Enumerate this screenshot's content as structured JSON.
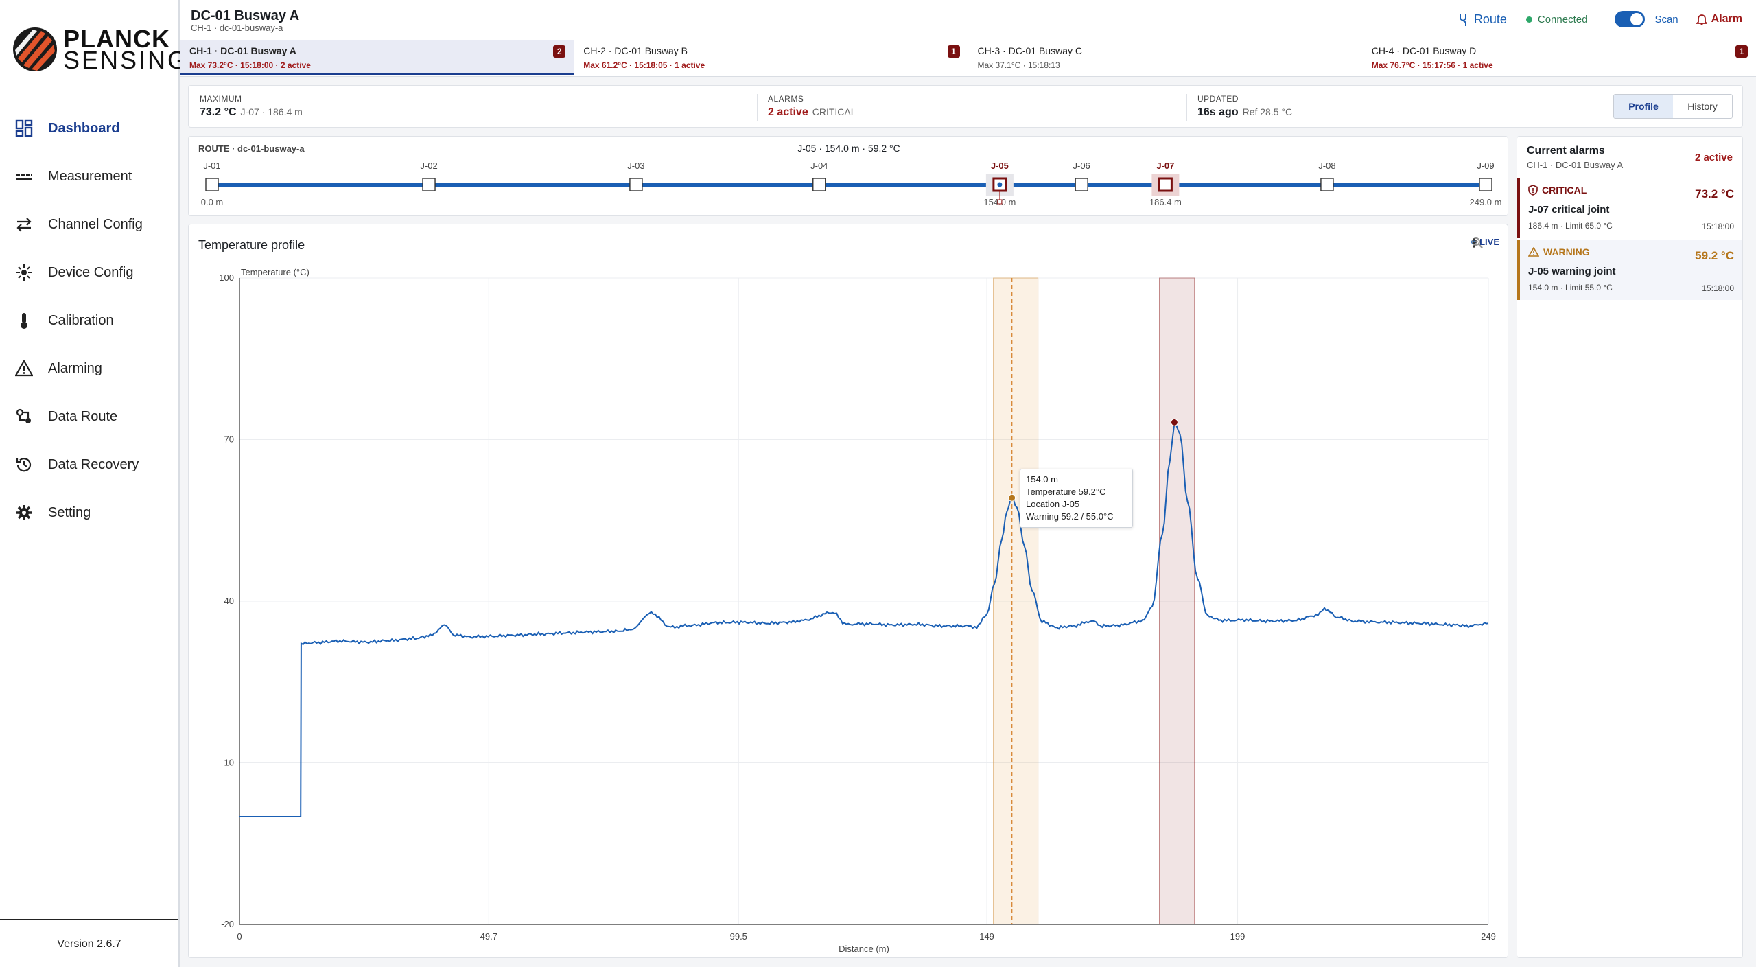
{
  "brand": {
    "line1": "PLANCK",
    "line2": "SENSING"
  },
  "nav": {
    "items": [
      {
        "label": "Dashboard",
        "icon": "dashboard-icon",
        "active": true
      },
      {
        "label": "Measurement",
        "icon": "measurement-icon"
      },
      {
        "label": "Channel Config",
        "icon": "channel-config-icon"
      },
      {
        "label": "Device Config",
        "icon": "device-config-icon"
      },
      {
        "label": "Calibration",
        "icon": "thermometer-icon"
      },
      {
        "label": "Alarming",
        "icon": "warning-icon"
      },
      {
        "label": "Data Route",
        "icon": "data-route-icon"
      },
      {
        "label": "Data Recovery",
        "icon": "history-icon"
      },
      {
        "label": "Setting",
        "icon": "gear-icon"
      }
    ],
    "version": "Version 2.6.7"
  },
  "header": {
    "title": "DC-01 Busway A",
    "subtitle": "CH-1 · dc-01-busway-a",
    "route_label": "Route",
    "connection": "Connected",
    "scan_label": "Scan",
    "alarm_label": "Alarm"
  },
  "channels": [
    {
      "name": "CH-1 · DC-01 Busway A",
      "meta": "Max 73.2°C · 15:18:00 · 2 active",
      "badge": "2",
      "alarm": true,
      "active": true
    },
    {
      "name": "CH-2 · DC-01 Busway B",
      "meta": "Max 61.2°C · 15:18:05 · 1 active",
      "badge": "1",
      "alarm": true
    },
    {
      "name": "CH-3 · DC-01 Busway C",
      "meta": "Max 37.1°C · 15:18:13",
      "badge": "",
      "alarm": false
    },
    {
      "name": "CH-4 · DC-01 Busway D",
      "meta": "Max 76.7°C · 15:17:56 · 1 active",
      "badge": "1",
      "alarm": true
    }
  ],
  "summary": {
    "maximum": {
      "label": "MAXIMUM",
      "value": "73.2 °C",
      "detail": "J-07 · 186.4 m"
    },
    "alarms": {
      "label": "ALARMS",
      "value": "2 active",
      "detail": "CRITICAL"
    },
    "updated": {
      "label": "UPDATED",
      "value": "16s ago",
      "detail": "Ref 28.5 °C"
    },
    "views": [
      "Profile",
      "History"
    ],
    "active_view": "Profile"
  },
  "route": {
    "title": "ROUTE · dc-01-busway-a",
    "readout": "J-05 · 154.0 m · 59.2 °C",
    "length_m": 249,
    "joints": [
      {
        "id": "J-01",
        "pos": 0
      },
      {
        "id": "J-02",
        "pos": 42.4
      },
      {
        "id": "J-03",
        "pos": 82.9
      },
      {
        "id": "J-04",
        "pos": 118.7
      },
      {
        "id": "J-05",
        "pos": 154.0,
        "state": "warning"
      },
      {
        "id": "J-06",
        "pos": 170.0
      },
      {
        "id": "J-07",
        "pos": 186.4,
        "state": "critical"
      },
      {
        "id": "J-08",
        "pos": 218.0
      },
      {
        "id": "J-09",
        "pos": 249.0
      }
    ],
    "distance_labels": [
      {
        "pos": 0,
        "text": "0.0 m"
      },
      {
        "pos": 154.0,
        "text": "154.0 m"
      },
      {
        "pos": 186.4,
        "text": "186.4 m"
      },
      {
        "pos": 249.0,
        "text": "249.0 m"
      }
    ]
  },
  "chart_tools": {
    "live_label": "LIVE"
  },
  "chart_data": {
    "type": "line",
    "title": "Temperature profile",
    "ylabel": "Temperature (°C)",
    "xlabel": "Distance (m)",
    "xlim": [
      0,
      249
    ],
    "ylim": [
      -20,
      100
    ],
    "x_ticks": [
      "0",
      "49.7",
      "99.5",
      "149",
      "199",
      "249"
    ],
    "x_tick_values": [
      0,
      49.7,
      99.5,
      149,
      199,
      249
    ],
    "y_ticks": [
      -20,
      10,
      40,
      70,
      100
    ],
    "grid": true,
    "bands": [
      {
        "from": 150.3,
        "to": 159.2,
        "severity": "warning"
      },
      {
        "from": 183.4,
        "to": 190.4,
        "severity": "critical"
      }
    ],
    "cursor_x": 154.0,
    "markers": [
      {
        "x": 154.0,
        "y": 59.2,
        "severity": "warning"
      },
      {
        "x": 186.4,
        "y": 73.2,
        "severity": "critical"
      }
    ],
    "series": [
      {
        "x": [
          0,
          12.2,
          12.3,
          15,
          20,
          25,
          30,
          35,
          38,
          40.9,
          43,
          46,
          50,
          55,
          60,
          65,
          70,
          75,
          78,
          82.1,
          86,
          90,
          95,
          100,
          105,
          110,
          112,
          118.3,
          121,
          125,
          130,
          135,
          140,
          145,
          147,
          149,
          150.5,
          152,
          153,
          154,
          155,
          156.5,
          158,
          160,
          163,
          166,
          170,
          172,
          175,
          180,
          182,
          184,
          185.5,
          186.4,
          187.5,
          189,
          191,
          193,
          196,
          200,
          205,
          210,
          215,
          216.3,
          219,
          222,
          228,
          235,
          242,
          245,
          249
        ],
        "y": [
          0,
          0,
          32.1,
          32.3,
          32.6,
          32.4,
          32.7,
          33.1,
          33.6,
          35.5,
          33.7,
          33.4,
          33.5,
          33.7,
          33.9,
          34.1,
          34.3,
          34.4,
          34.7,
          37.8,
          35.2,
          35.5,
          36,
          36.1,
          35.9,
          36.1,
          36.4,
          37.9,
          35.7,
          35.8,
          35.6,
          35.7,
          35.4,
          35.4,
          35.2,
          37.6,
          43.2,
          51.5,
          56.8,
          59.2,
          57.4,
          50.2,
          42,
          36.2,
          35.1,
          35.4,
          36.3,
          35.4,
          35.5,
          36.3,
          39.1,
          52.5,
          66.1,
          73.2,
          71,
          58.6,
          44.2,
          37.2,
          36.4,
          36.5,
          36.3,
          36.4,
          37.4,
          38.6,
          37,
          36.3,
          36.1,
          35.9,
          35.6,
          35.4,
          35.9
        ]
      }
    ]
  },
  "tooltip": {
    "distance": "154.0 m",
    "temperature": "Temperature  59.2°C",
    "location": "Location  J-05",
    "warning": "Warning  59.2 / 55.0°C"
  },
  "alarms_panel": {
    "title": "Current alarms",
    "subtitle": "CH-1 · DC-01 Busway A",
    "count": "2 active",
    "items": [
      {
        "severity": "CRITICAL",
        "value": "73.2 °C",
        "name": "J-07 critical joint",
        "meta": "186.4 m · Limit 65.0 °C",
        "time": "15:18:00"
      },
      {
        "severity": "WARNING",
        "value": "59.2 °C",
        "name": "J-05 warning joint",
        "meta": "154.0 m · Limit 55.0 °C",
        "time": "15:18:00"
      }
    ]
  },
  "colors": {
    "accent": "#1a5fb4",
    "critical": "#7a1010",
    "warning": "#b5761b",
    "nav_active": "#1a3d8f"
  }
}
